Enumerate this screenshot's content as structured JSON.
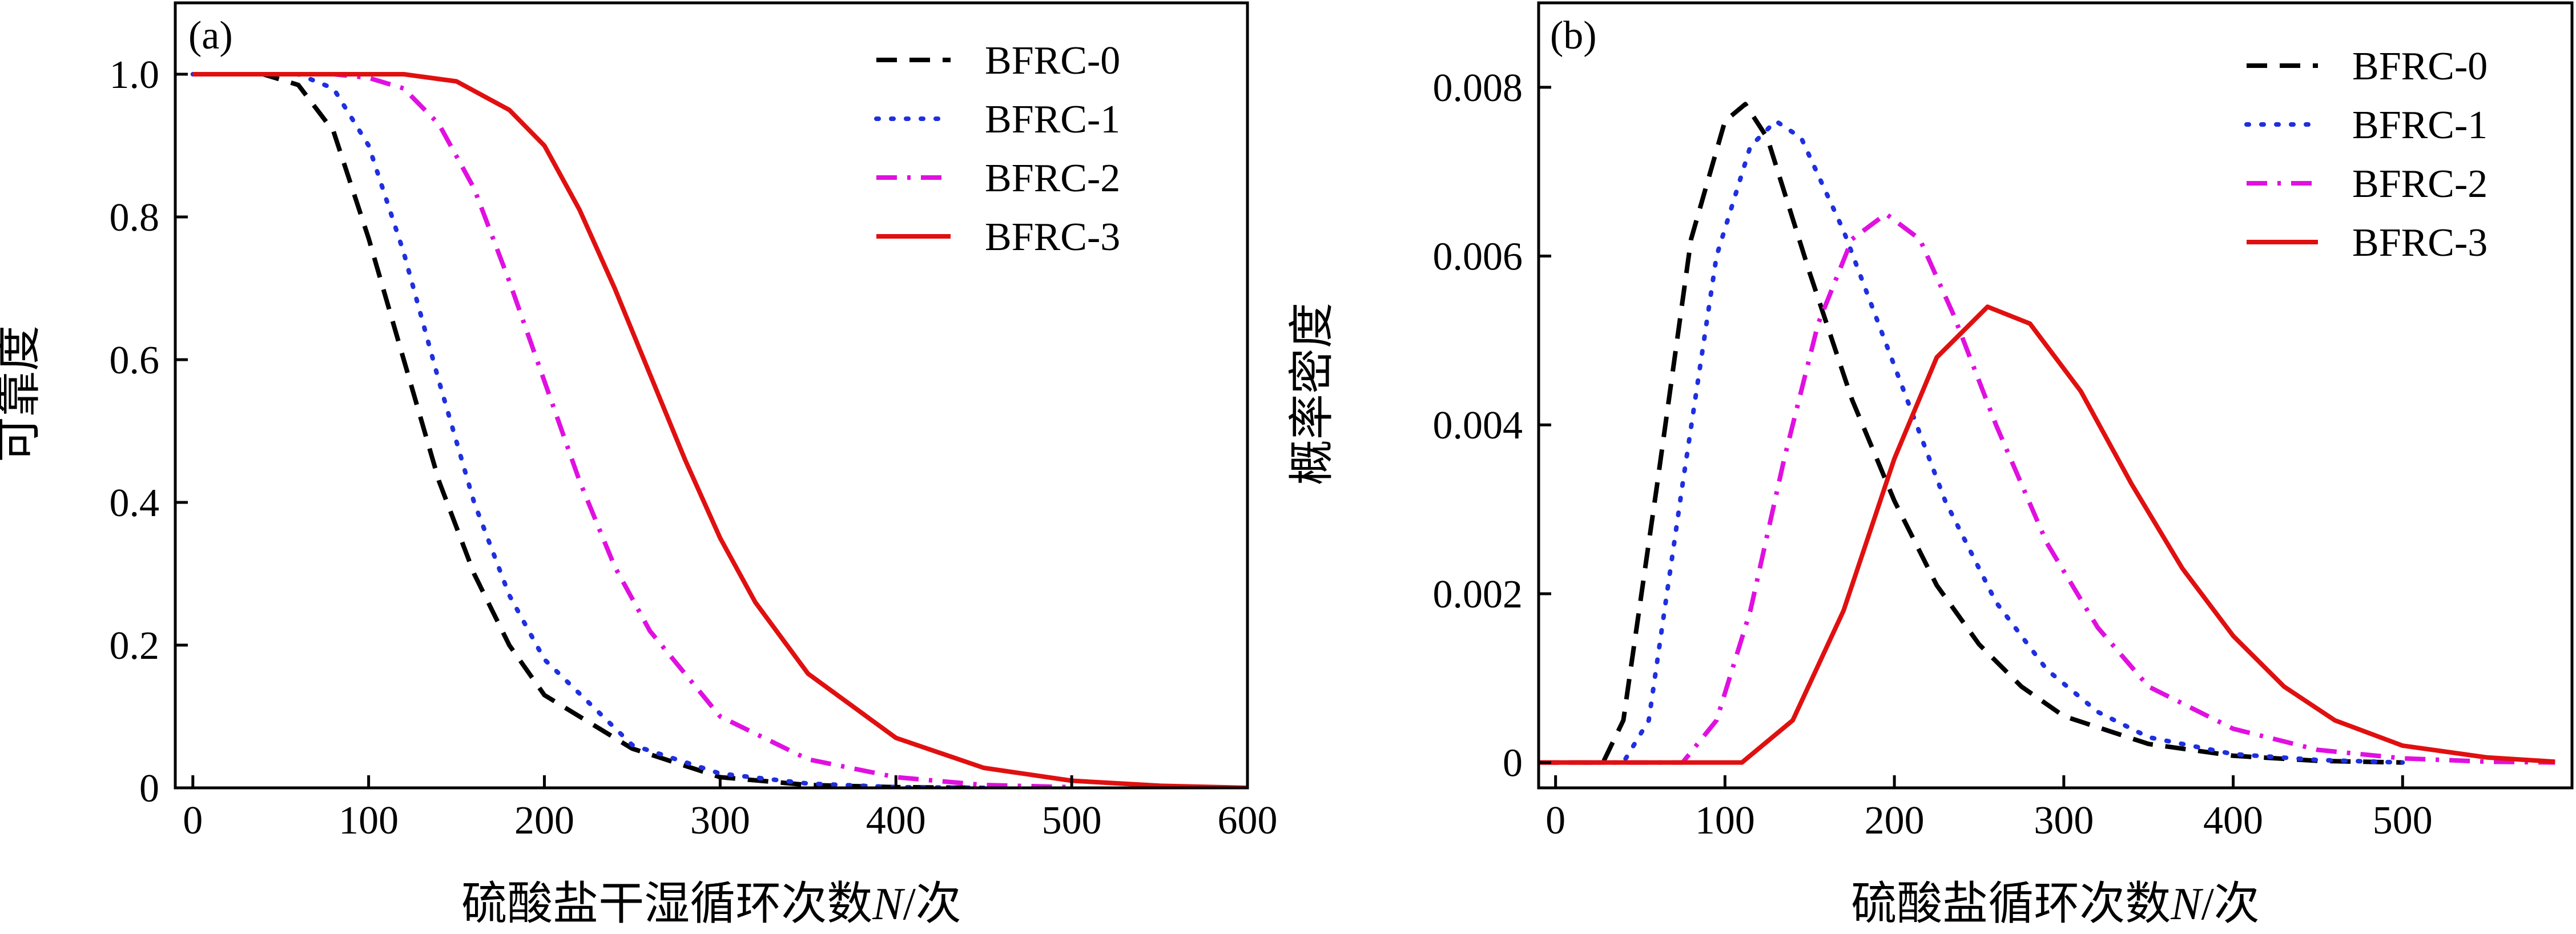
{
  "chart_data": [
    {
      "type": "line",
      "panel_label": "(a)",
      "xlabel_prefix": "硫酸盐干湿循环次数",
      "xlabel_var": "N",
      "xlabel_suffix": "/次",
      "ylabel": "可靠度",
      "xlim": [
        -10,
        600
      ],
      "ylim": [
        0,
        1.1
      ],
      "xticks": [
        0,
        100,
        200,
        300,
        400,
        500,
        600
      ],
      "xtick_labels": [
        "0",
        "100",
        "200",
        "300",
        "400",
        "500",
        "600"
      ],
      "yticks": [
        0,
        0.2,
        0.4,
        0.6,
        0.8,
        1.0
      ],
      "ytick_labels": [
        "0",
        "0.2",
        "0.4",
        "0.6",
        "0.8",
        "1.0"
      ],
      "legend_position": "top-right",
      "series": [
        {
          "name": "BFRC-0",
          "style": "dashed",
          "color": "#000000",
          "x": [
            0,
            40,
            60,
            80,
            100,
            120,
            140,
            160,
            180,
            200,
            250,
            300,
            350,
            400,
            450
          ],
          "y": [
            1.0,
            1.0,
            0.985,
            0.92,
            0.77,
            0.6,
            0.43,
            0.3,
            0.2,
            0.13,
            0.055,
            0.015,
            0.004,
            0.001,
            0.0
          ]
        },
        {
          "name": "BFRC-1",
          "style": "dotted",
          "color": "#1f2fe0",
          "x": [
            0,
            60,
            80,
            100,
            120,
            140,
            160,
            180,
            200,
            250,
            300,
            350,
            400,
            450
          ],
          "y": [
            1.0,
            1.0,
            0.98,
            0.9,
            0.75,
            0.57,
            0.4,
            0.27,
            0.18,
            0.06,
            0.02,
            0.006,
            0.001,
            0.0
          ]
        },
        {
          "name": "BFRC-2",
          "style": "dashdot",
          "color": "#e010e0",
          "x": [
            0,
            80,
            100,
            120,
            140,
            160,
            180,
            200,
            220,
            240,
            260,
            300,
            350,
            400,
            450,
            500
          ],
          "y": [
            1.0,
            1.0,
            0.995,
            0.98,
            0.93,
            0.84,
            0.71,
            0.57,
            0.43,
            0.31,
            0.22,
            0.1,
            0.04,
            0.015,
            0.004,
            0.001
          ]
        },
        {
          "name": "BFRC-3",
          "style": "solid",
          "color": "#e01010",
          "x": [
            0,
            120,
            150,
            180,
            200,
            220,
            240,
            260,
            280,
            300,
            320,
            350,
            400,
            450,
            500,
            550,
            600
          ],
          "y": [
            1.0,
            1.0,
            0.99,
            0.95,
            0.9,
            0.81,
            0.7,
            0.58,
            0.46,
            0.35,
            0.26,
            0.16,
            0.07,
            0.028,
            0.01,
            0.003,
            0.0
          ]
        }
      ]
    },
    {
      "type": "line",
      "panel_label": "(b)",
      "xlabel_prefix": "硫酸盐循环次数",
      "xlabel_var": "N",
      "xlabel_suffix": "/次",
      "ylabel": "概率密度",
      "xlim": [
        -10,
        600
      ],
      "ylim": [
        -0.0003,
        0.009
      ],
      "xticks": [
        0,
        100,
        200,
        300,
        400,
        500
      ],
      "xtick_labels": [
        "0",
        "100",
        "200",
        "300",
        "400",
        "500"
      ],
      "yticks": [
        0,
        0.002,
        0.004,
        0.006,
        0.008
      ],
      "ytick_labels": [
        "0",
        "0.002",
        "0.004",
        "0.006",
        "0.008"
      ],
      "legend_position": "top-right",
      "series": [
        {
          "name": "BFRC-0",
          "style": "dashed",
          "color": "#000000",
          "x": [
            -10,
            28,
            40,
            60,
            80,
            100,
            112,
            125,
            150,
            175,
            200,
            225,
            250,
            275,
            300,
            350,
            400,
            450,
            500
          ],
          "y": [
            0.0,
            0.0,
            0.0005,
            0.0033,
            0.0062,
            0.0076,
            0.0078,
            0.0074,
            0.0058,
            0.0043,
            0.0031,
            0.0021,
            0.0014,
            0.0009,
            0.00055,
            0.00022,
            8e-05,
            2e-05,
            0.0
          ]
        },
        {
          "name": "BFRC-1",
          "style": "dotted",
          "color": "#1f2fe0",
          "x": [
            -10,
            40,
            55,
            75,
            95,
            115,
            130,
            145,
            170,
            200,
            230,
            260,
            290,
            320,
            350,
            400,
            450,
            500
          ],
          "y": [
            0.0,
            0.0,
            0.0005,
            0.0033,
            0.006,
            0.0073,
            0.0076,
            0.0074,
            0.0063,
            0.0047,
            0.0031,
            0.0019,
            0.0011,
            0.0006,
            0.0003,
            0.0001,
            3e-05,
            0.0
          ]
        },
        {
          "name": "BFRC-2",
          "style": "dashdot",
          "color": "#e010e0",
          "x": [
            -10,
            75,
            95,
            115,
            135,
            155,
            175,
            195,
            215,
            235,
            260,
            290,
            320,
            350,
            400,
            450,
            500,
            550,
            590
          ],
          "y": [
            0.0,
            0.0,
            0.0005,
            0.0018,
            0.0036,
            0.0052,
            0.0062,
            0.0065,
            0.0062,
            0.0053,
            0.004,
            0.0026,
            0.0016,
            0.0009,
            0.0004,
            0.00015,
            5e-05,
            1e-05,
            0.0
          ]
        },
        {
          "name": "BFRC-3",
          "style": "solid",
          "color": "#e01010",
          "x": [
            -10,
            110,
            140,
            170,
            200,
            225,
            255,
            280,
            310,
            340,
            370,
            400,
            430,
            460,
            500,
            550,
            590
          ],
          "y": [
            0.0,
            0.0,
            0.0005,
            0.0018,
            0.0036,
            0.0048,
            0.0054,
            0.0052,
            0.0044,
            0.0033,
            0.0023,
            0.0015,
            0.0009,
            0.0005,
            0.0002,
            6e-05,
            1e-05
          ]
        }
      ]
    }
  ]
}
